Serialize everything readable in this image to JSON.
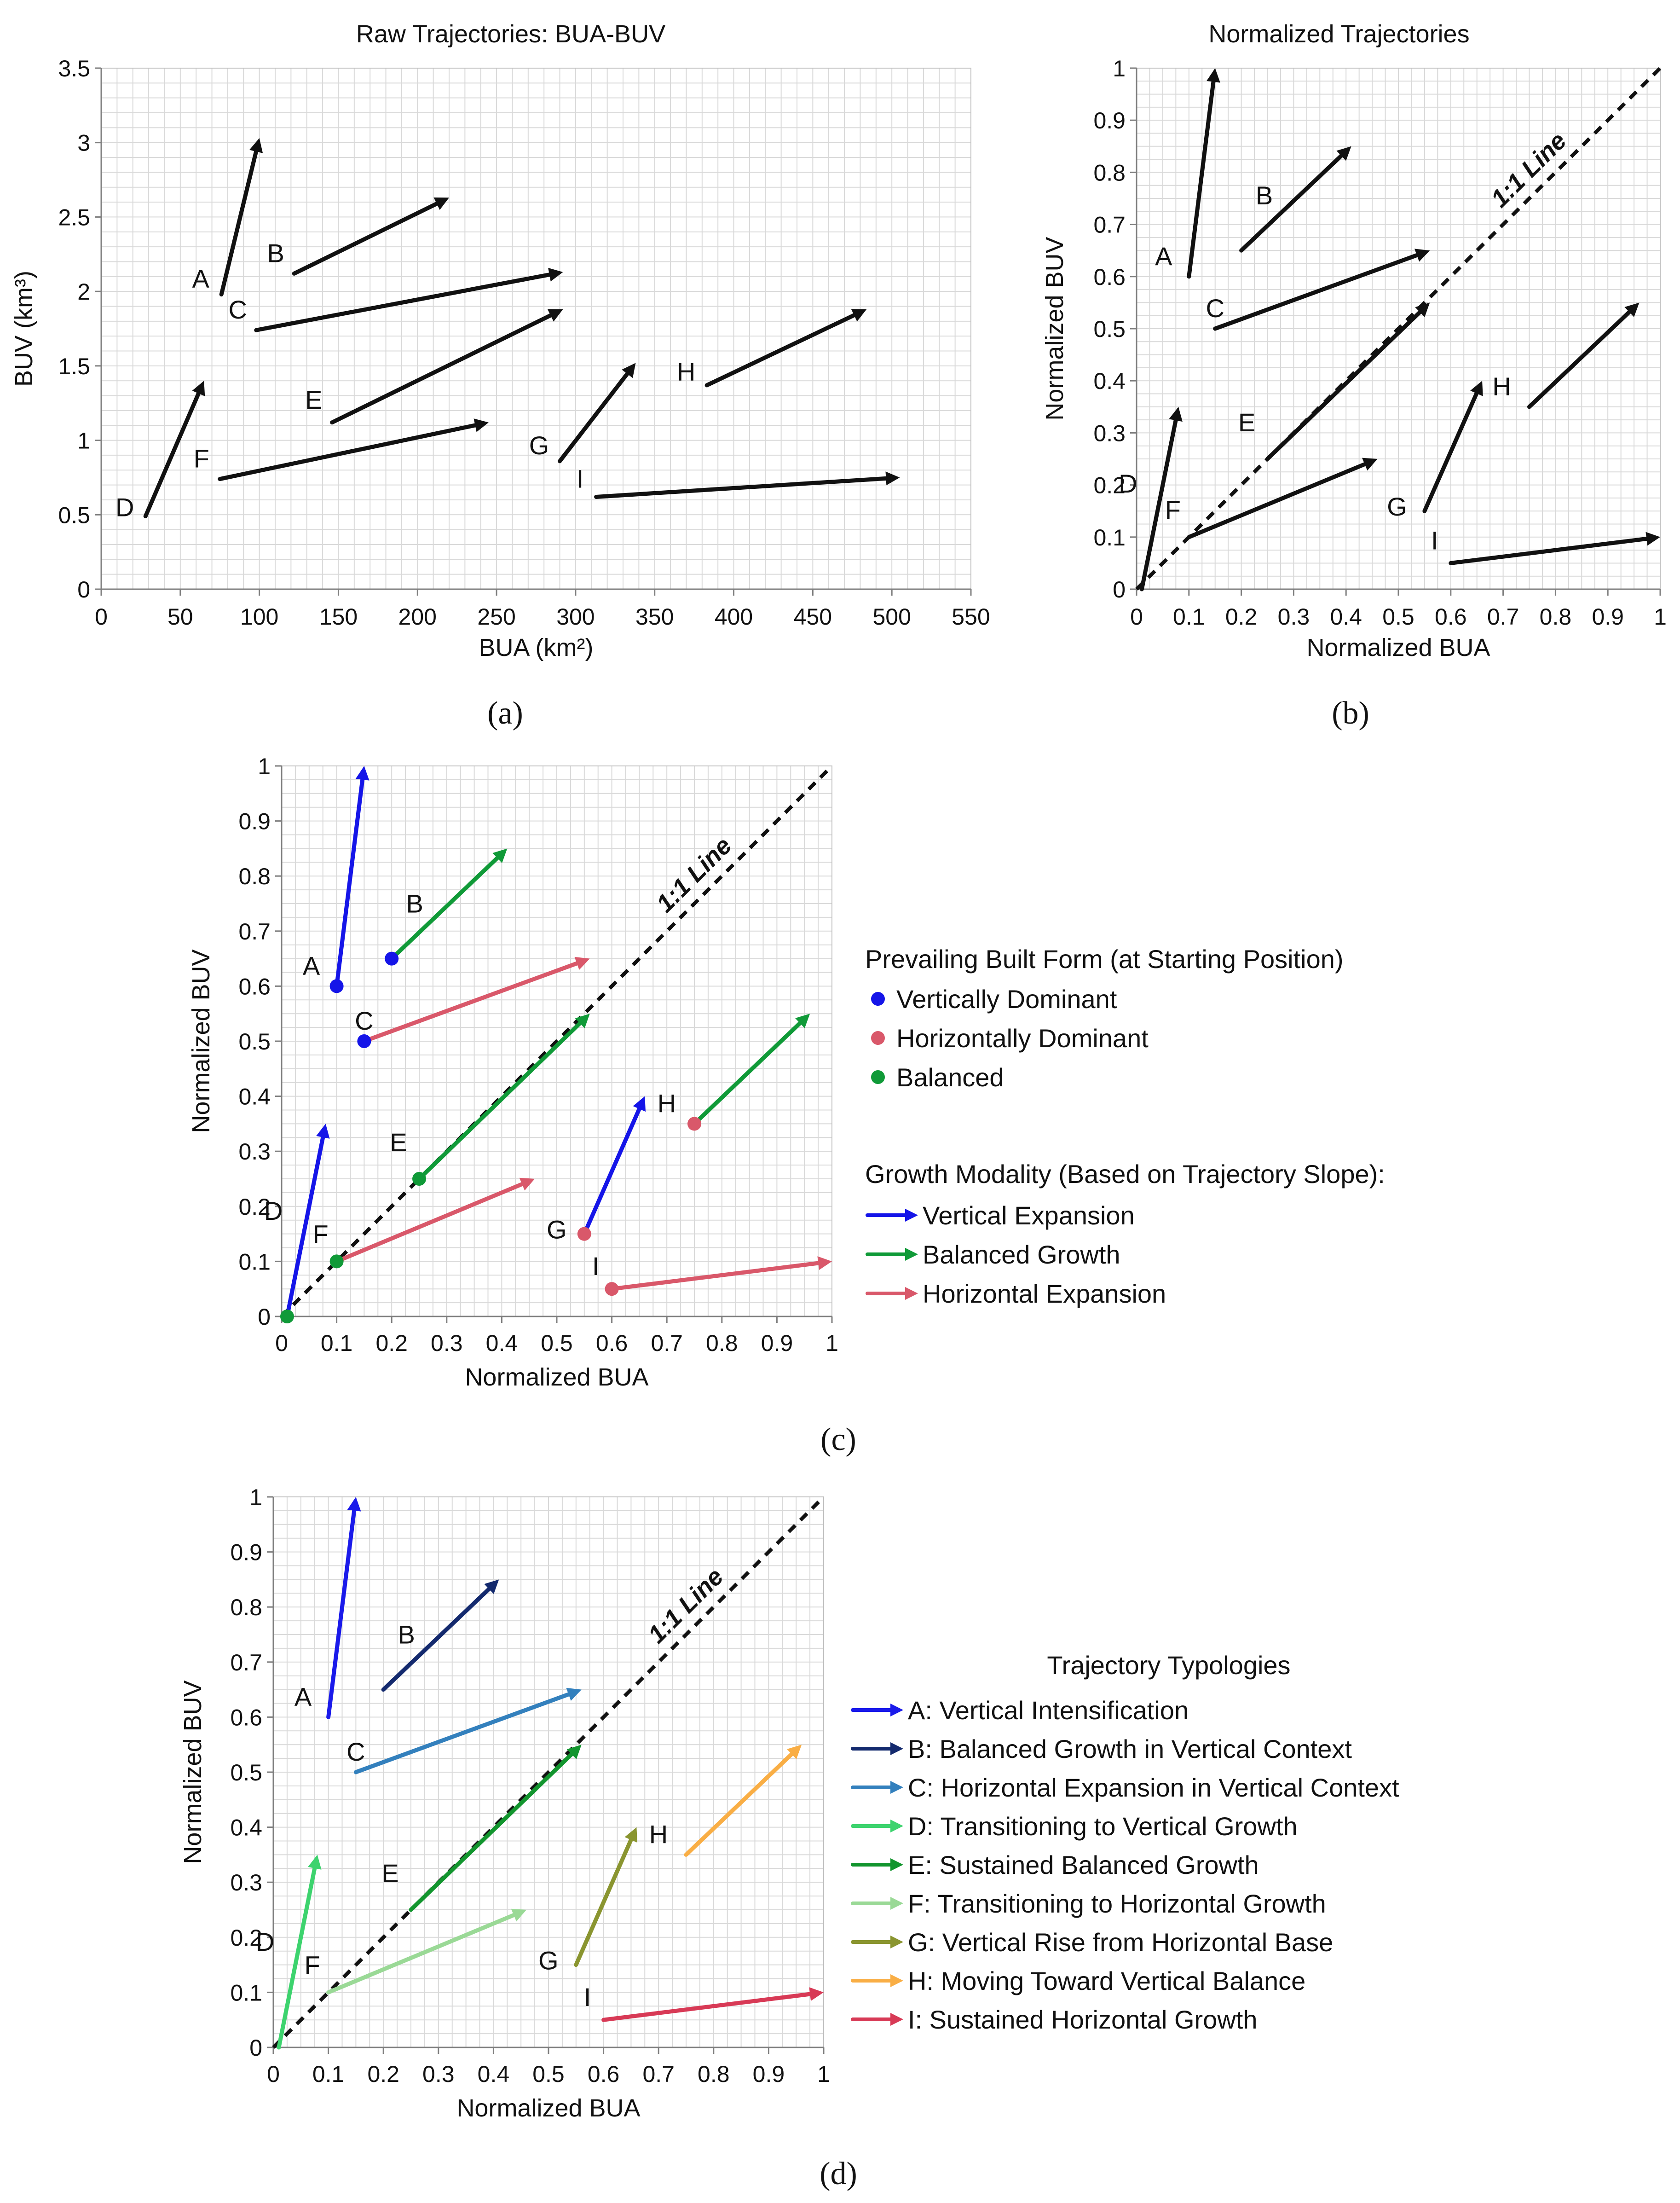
{
  "colors": {
    "black": "#111111",
    "grid": "#d9d9d9",
    "axis": "#7f7f7f",
    "blue": "#1515e8",
    "red": "#d9586a",
    "green": "#109a38",
    "A": "#1a1aea",
    "B": "#142a6e",
    "C": "#3380bd",
    "D": "#3dd36e",
    "E": "#12952e",
    "F": "#9ad996",
    "G": "#8a9530",
    "H": "#f9ae45",
    "I": "#d83a56"
  },
  "panel_labels": {
    "a": "(a)",
    "b": "(b)",
    "c": "(c)",
    "d": "(d)"
  },
  "chart_data": [
    {
      "id": "a",
      "type": "line",
      "title": "Raw Trajectories: BUA-BUV",
      "xlabel": "BUA (km²)",
      "ylabel": "BUV (km³)",
      "xlim": [
        0,
        550
      ],
      "ylim": [
        0,
        3.5
      ],
      "xticks": [
        0,
        50,
        100,
        150,
        200,
        250,
        300,
        350,
        400,
        450,
        500,
        550
      ],
      "yticks": [
        0,
        0.5,
        1,
        1.5,
        2,
        2.5,
        3,
        3.5
      ],
      "xtick_labels": [
        "0",
        "50",
        "100",
        "150",
        "200",
        "250",
        "300",
        "350",
        "400",
        "450",
        "500",
        "550"
      ],
      "ytick_labels": [
        "0",
        "0.5",
        "1",
        "1.5",
        "2",
        "2.5",
        "3",
        "3.5"
      ],
      "series": [
        {
          "name": "A",
          "start": [
            76,
            1.98
          ],
          "end": [
            100,
            3.03
          ]
        },
        {
          "name": "B",
          "start": [
            122,
            2.12
          ],
          "end": [
            220,
            2.63
          ]
        },
        {
          "name": "C",
          "start": [
            98,
            1.74
          ],
          "end": [
            292,
            2.13
          ]
        },
        {
          "name": "D",
          "start": [
            28,
            0.49
          ],
          "end": [
            65,
            1.4
          ]
        },
        {
          "name": "E",
          "start": [
            146,
            1.12
          ],
          "end": [
            292,
            1.88
          ]
        },
        {
          "name": "F",
          "start": [
            75,
            0.74
          ],
          "end": [
            245,
            1.12
          ]
        },
        {
          "name": "G",
          "start": [
            290,
            0.86
          ],
          "end": [
            338,
            1.52
          ]
        },
        {
          "name": "H",
          "start": [
            383,
            1.37
          ],
          "end": [
            484,
            1.88
          ]
        },
        {
          "name": "I",
          "start": [
            313,
            0.62
          ],
          "end": [
            505,
            0.75
          ]
        }
      ]
    },
    {
      "id": "b",
      "type": "line",
      "title": "Normalized Trajectories",
      "xlabel": "Normalized BUA",
      "ylabel": "Normalized BUV",
      "xlim": [
        0,
        1
      ],
      "ylim": [
        0,
        1
      ],
      "xticks": [
        0,
        0.1,
        0.2,
        0.3,
        0.4,
        0.5,
        0.6,
        0.7,
        0.8,
        0.9,
        1
      ],
      "yticks": [
        0,
        0.1,
        0.2,
        0.3,
        0.4,
        0.5,
        0.6,
        0.7,
        0.8,
        0.9,
        1
      ],
      "xtick_labels": [
        "0",
        "0.1",
        "0.2",
        "0.3",
        "0.4",
        "0.5",
        "0.6",
        "0.7",
        "0.8",
        "0.9",
        "1"
      ],
      "ytick_labels": [
        "0",
        "0.1",
        "0.2",
        "0.3",
        "0.4",
        "0.5",
        "0.6",
        "0.7",
        "0.8",
        "0.9",
        "1"
      ],
      "reference_line": "1:1 Line",
      "series": [
        {
          "name": "A",
          "start": [
            0.1,
            0.6
          ],
          "end": [
            0.15,
            1.0
          ]
        },
        {
          "name": "B",
          "start": [
            0.2,
            0.65
          ],
          "end": [
            0.41,
            0.85
          ]
        },
        {
          "name": "C",
          "start": [
            0.15,
            0.5
          ],
          "end": [
            0.56,
            0.65
          ]
        },
        {
          "name": "D",
          "start": [
            0.01,
            0.0
          ],
          "end": [
            0.08,
            0.35
          ]
        },
        {
          "name": "E",
          "start": [
            0.25,
            0.25
          ],
          "end": [
            0.56,
            0.55
          ]
        },
        {
          "name": "F",
          "start": [
            0.1,
            0.1
          ],
          "end": [
            0.46,
            0.25
          ]
        },
        {
          "name": "G",
          "start": [
            0.55,
            0.15
          ],
          "end": [
            0.66,
            0.4
          ]
        },
        {
          "name": "H",
          "start": [
            0.75,
            0.35
          ],
          "end": [
            0.96,
            0.55
          ]
        },
        {
          "name": "I",
          "start": [
            0.6,
            0.05
          ],
          "end": [
            1.0,
            0.1
          ]
        }
      ]
    },
    {
      "id": "c",
      "type": "line",
      "title": "",
      "xlabel": "Normalized BUA",
      "ylabel": "Normalized BUV",
      "xlim": [
        0,
        1
      ],
      "ylim": [
        0,
        1
      ],
      "xticks": [
        0,
        0.1,
        0.2,
        0.3,
        0.4,
        0.5,
        0.6,
        0.7,
        0.8,
        0.9,
        1
      ],
      "yticks": [
        0,
        0.1,
        0.2,
        0.3,
        0.4,
        0.5,
        0.6,
        0.7,
        0.8,
        0.9,
        1
      ],
      "xtick_labels": [
        "0",
        "0.1",
        "0.2",
        "0.3",
        "0.4",
        "0.5",
        "0.6",
        "0.7",
        "0.8",
        "0.9",
        "1"
      ],
      "ytick_labels": [
        "0",
        "0.1",
        "0.2",
        "0.3",
        "0.4",
        "0.5",
        "0.6",
        "0.7",
        "0.8",
        "0.9",
        "1"
      ],
      "reference_line": "1:1 Line",
      "legend_start": {
        "title": "Prevailing Built Form (at Starting Position)",
        "entries": [
          {
            "label": "Vertically Dominant",
            "color": "blue"
          },
          {
            "label": "Horizontally Dominant",
            "color": "red"
          },
          {
            "label": "Balanced",
            "color": "green"
          }
        ]
      },
      "legend_growth": {
        "title": "Growth Modality (Based on Trajectory Slope):",
        "entries": [
          {
            "label": "Vertical Expansion",
            "color": "blue"
          },
          {
            "label": "Balanced Growth",
            "color": "green"
          },
          {
            "label": "Horizontal Expansion",
            "color": "red"
          }
        ]
      },
      "series": [
        {
          "name": "A",
          "start": [
            0.1,
            0.6
          ],
          "end": [
            0.15,
            1.0
          ],
          "start_form": "blue",
          "modality": "blue"
        },
        {
          "name": "B",
          "start": [
            0.2,
            0.65
          ],
          "end": [
            0.41,
            0.85
          ],
          "start_form": "blue",
          "modality": "green"
        },
        {
          "name": "C",
          "start": [
            0.15,
            0.5
          ],
          "end": [
            0.56,
            0.65
          ],
          "start_form": "blue",
          "modality": "red"
        },
        {
          "name": "D",
          "start": [
            0.01,
            0.0
          ],
          "end": [
            0.08,
            0.35
          ],
          "start_form": "green",
          "modality": "blue"
        },
        {
          "name": "E",
          "start": [
            0.25,
            0.25
          ],
          "end": [
            0.56,
            0.55
          ],
          "start_form": "green",
          "modality": "green"
        },
        {
          "name": "F",
          "start": [
            0.1,
            0.1
          ],
          "end": [
            0.46,
            0.25
          ],
          "start_form": "green",
          "modality": "red"
        },
        {
          "name": "G",
          "start": [
            0.55,
            0.15
          ],
          "end": [
            0.66,
            0.4
          ],
          "start_form": "red",
          "modality": "blue"
        },
        {
          "name": "H",
          "start": [
            0.75,
            0.35
          ],
          "end": [
            0.96,
            0.55
          ],
          "start_form": "red",
          "modality": "green"
        },
        {
          "name": "I",
          "start": [
            0.6,
            0.05
          ],
          "end": [
            1.0,
            0.1
          ],
          "start_form": "red",
          "modality": "red"
        }
      ]
    },
    {
      "id": "d",
      "type": "line",
      "title": "",
      "xlabel": "Normalized BUA",
      "ylabel": "Normalized BUV",
      "xlim": [
        0,
        1
      ],
      "ylim": [
        0,
        1
      ],
      "xticks": [
        0,
        0.1,
        0.2,
        0.3,
        0.4,
        0.5,
        0.6,
        0.7,
        0.8,
        0.9,
        1
      ],
      "yticks": [
        0,
        0.1,
        0.2,
        0.3,
        0.4,
        0.5,
        0.6,
        0.7,
        0.8,
        0.9,
        1
      ],
      "xtick_labels": [
        "0",
        "0.1",
        "0.2",
        "0.3",
        "0.4",
        "0.5",
        "0.6",
        "0.7",
        "0.8",
        "0.9",
        "1"
      ],
      "ytick_labels": [
        "0",
        "0.1",
        "0.2",
        "0.3",
        "0.4",
        "0.5",
        "0.6",
        "0.7",
        "0.8",
        "0.9",
        "1"
      ],
      "reference_line": "1:1 Line",
      "legend": {
        "title": "Trajectory Typologies",
        "entries": [
          {
            "label": "A: Vertical Intensification",
            "color": "A"
          },
          {
            "label": "B: Balanced Growth in Vertical Context",
            "color": "B"
          },
          {
            "label": "C: Horizontal Expansion in Vertical Context",
            "color": "C"
          },
          {
            "label": "D: Transitioning to Vertical Growth",
            "color": "D"
          },
          {
            "label": "E: Sustained Balanced Growth",
            "color": "E"
          },
          {
            "label": "F: Transitioning to Horizontal Growth",
            "color": "F"
          },
          {
            "label": "G: Vertical Rise from Horizontal Base",
            "color": "G"
          },
          {
            "label": "H: Moving Toward Vertical Balance",
            "color": "H"
          },
          {
            "label": "I: Sustained Horizontal Growth",
            "color": "I"
          }
        ]
      },
      "series": [
        {
          "name": "A",
          "start": [
            0.1,
            0.6
          ],
          "end": [
            0.15,
            1.0
          ]
        },
        {
          "name": "B",
          "start": [
            0.2,
            0.65
          ],
          "end": [
            0.41,
            0.85
          ]
        },
        {
          "name": "C",
          "start": [
            0.15,
            0.5
          ],
          "end": [
            0.56,
            0.65
          ]
        },
        {
          "name": "D",
          "start": [
            0.01,
            0.0
          ],
          "end": [
            0.08,
            0.35
          ]
        },
        {
          "name": "E",
          "start": [
            0.25,
            0.25
          ],
          "end": [
            0.56,
            0.55
          ]
        },
        {
          "name": "F",
          "start": [
            0.1,
            0.1
          ],
          "end": [
            0.46,
            0.25
          ]
        },
        {
          "name": "G",
          "start": [
            0.55,
            0.15
          ],
          "end": [
            0.66,
            0.4
          ]
        },
        {
          "name": "H",
          "start": [
            0.75,
            0.35
          ],
          "end": [
            0.96,
            0.55
          ]
        },
        {
          "name": "I",
          "start": [
            0.6,
            0.05
          ],
          "end": [
            1.0,
            0.1
          ]
        }
      ]
    }
  ]
}
